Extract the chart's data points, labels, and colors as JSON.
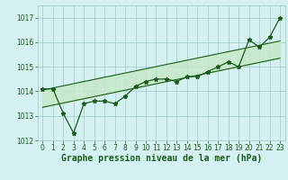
{
  "title": "Graphe pression niveau de la mer (hPa)",
  "x_values": [
    0,
    1,
    2,
    3,
    4,
    5,
    6,
    7,
    8,
    9,
    10,
    11,
    12,
    13,
    14,
    15,
    16,
    17,
    18,
    19,
    20,
    21,
    22,
    23
  ],
  "y_main": [
    1014.1,
    1014.1,
    1013.1,
    1012.3,
    1013.5,
    1013.6,
    1013.6,
    1013.5,
    1013.8,
    1014.2,
    1014.4,
    1014.5,
    1014.5,
    1014.4,
    1014.6,
    1014.6,
    1014.8,
    1015.0,
    1015.2,
    1015.0,
    1016.1,
    1015.8,
    1016.2,
    1017.0
  ],
  "upper_line": [
    [
      0,
      1014.05
    ],
    [
      23,
      1016.05
    ]
  ],
  "lower_line": [
    [
      0,
      1013.35
    ],
    [
      23,
      1015.35
    ]
  ],
  "xlim": [
    -0.5,
    23.5
  ],
  "ylim": [
    1012.0,
    1017.5
  ],
  "yticks": [
    1012,
    1013,
    1014,
    1015,
    1016,
    1017
  ],
  "xticks": [
    0,
    1,
    2,
    3,
    4,
    5,
    6,
    7,
    8,
    9,
    10,
    11,
    12,
    13,
    14,
    15,
    16,
    17,
    18,
    19,
    20,
    21,
    22,
    23
  ],
  "line_color": "#1a5c1a",
  "fill_color": "#c8e8c8",
  "bg_color": "#d4f0f0",
  "grid_color": "#a0c8c8",
  "title_color": "#1a5c1a",
  "title_fontsize": 7.0,
  "tick_fontsize": 5.5,
  "fig_width": 3.2,
  "fig_height": 2.0,
  "fig_dpi": 100
}
